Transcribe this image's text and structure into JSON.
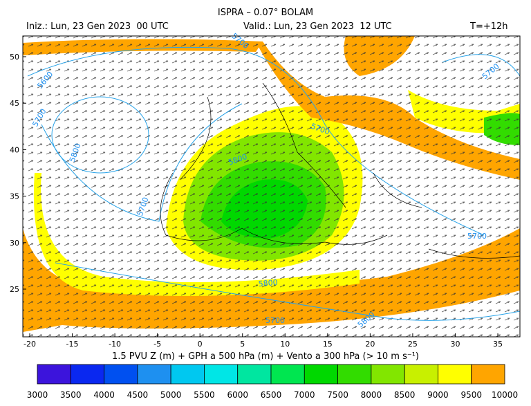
{
  "header": {
    "title": "ISPRA – 0.07° BOLAM",
    "init": "Iniz.: Lun, 23 Gen 2023  00 UTC",
    "valid": "Valid.: Lun, 23 Gen 2023  12 UTC",
    "lead": "T=+12h"
  },
  "map": {
    "lon_ticks": [
      -20,
      -15,
      -10,
      -5,
      0,
      5,
      10,
      15,
      20,
      25,
      30,
      35
    ],
    "lat_ticks": [
      25,
      30,
      35,
      40,
      45,
      50
    ],
    "contour_labels": [
      "5700",
      "5600",
      "5700",
      "5800",
      "5700",
      "5800",
      "5700",
      "5700",
      "5700",
      "5800",
      "5700",
      "5800"
    ],
    "caption": "1.5 PVU Z (m) + GPH a 500 hPa (m) + Vento a 300 hPa (> 10 m s⁻¹)"
  },
  "colorbar": {
    "levels": [
      3000,
      3500,
      4000,
      4500,
      5000,
      5500,
      6000,
      6500,
      7000,
      7500,
      8000,
      8500,
      9000,
      9500,
      10000
    ],
    "colors": [
      "#3c14dc",
      "#0a28f0",
      "#0050f0",
      "#1e90f0",
      "#00c8f0",
      "#00e6e6",
      "#00e6a0",
      "#00e650",
      "#00d800",
      "#32dc00",
      "#82e600",
      "#c8f000",
      "#ffff00",
      "#ffa500"
    ]
  }
}
